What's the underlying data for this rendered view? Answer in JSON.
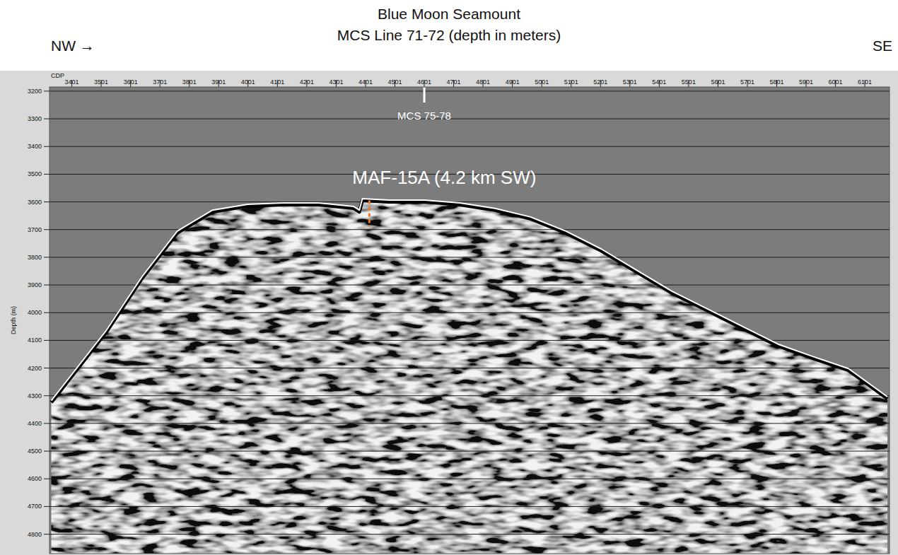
{
  "chart_data": {
    "type": "line",
    "title": "Blue Moon Seamount",
    "subtitle": "MCS Line 71-72 (depth in meters)",
    "x_label": "CDP",
    "y_label": "Depth (m)",
    "x": [
      3331,
      3519,
      3639,
      3760,
      3880,
      4000,
      4120,
      4241,
      4361,
      4380,
      4390,
      4481,
      4602,
      4722,
      4842,
      4963,
      5083,
      5203,
      5323,
      5444,
      5564,
      5684,
      5805,
      5925,
      6045,
      6178
    ],
    "values": [
      4324,
      4069,
      3878,
      3712,
      3636,
      3615,
      3610,
      3610,
      3623,
      3636,
      3595,
      3600,
      3600,
      3610,
      3630,
      3661,
      3712,
      3776,
      3852,
      3929,
      3992,
      4056,
      4120,
      4165,
      4208,
      4310
    ],
    "color": "#000000",
    "xlim": [
      3325,
      6185
    ],
    "ylim": [
      4870,
      3185
    ],
    "xticks": [
      3401,
      3501,
      3601,
      3701,
      3801,
      3901,
      4001,
      4101,
      4201,
      4301,
      4401,
      4501,
      4601,
      4701,
      4801,
      4901,
      5001,
      5101,
      5201,
      5301,
      5401,
      5501,
      5601,
      5701,
      5801,
      5901,
      6001,
      6101
    ],
    "yticks": [
      3200,
      3300,
      3400,
      3500,
      3600,
      3700,
      3800,
      3900,
      4000,
      4100,
      4200,
      4300,
      4400,
      4500,
      4600,
      4700,
      4800
    ],
    "grid": true,
    "annotations": [
      {
        "text": "MCS 75-78",
        "x": 4601
      },
      {
        "text": "MAF-15A (4.2 km SW)",
        "x": 4414,
        "y": [
          3595,
          3690
        ]
      },
      {
        "text": "NW →",
        "side": "left"
      },
      {
        "text": "SE",
        "side": "right"
      }
    ]
  }
}
